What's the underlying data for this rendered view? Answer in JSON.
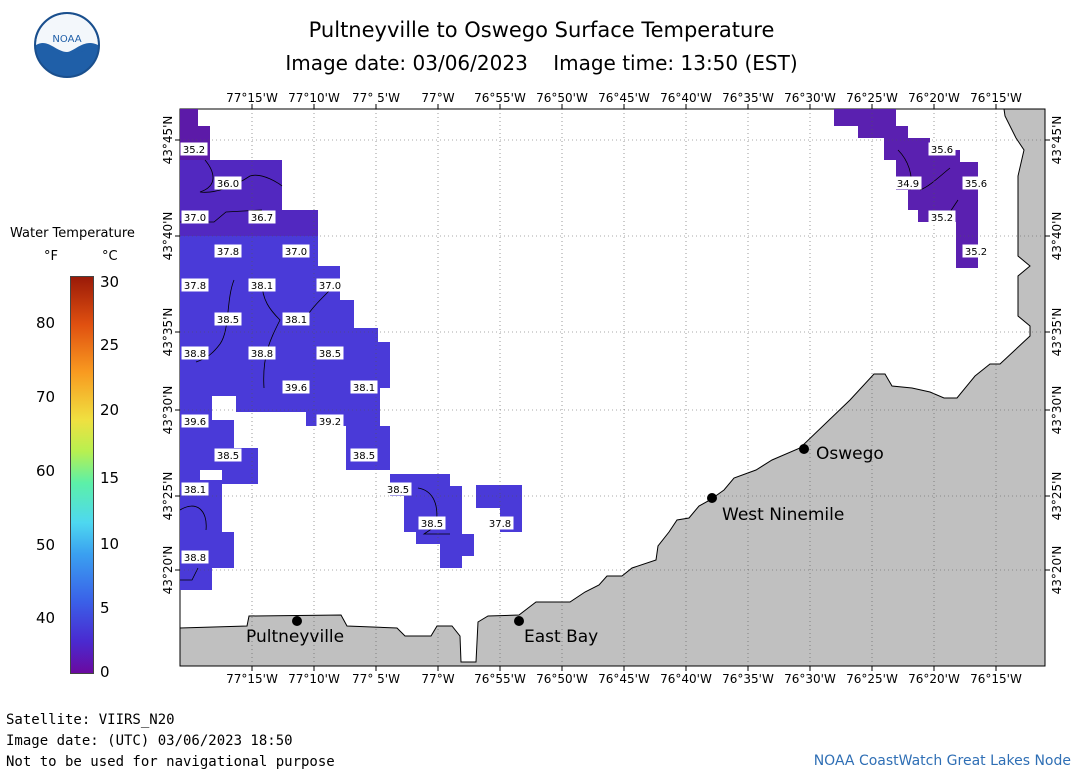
{
  "header": {
    "title": "Pultneyville to Oswego Surface Temperature",
    "subtitle": "Image date: 03/06/2023    Image time: 13:50 (EST)"
  },
  "logo": {
    "text": "NOAA",
    "icon": "noaa-logo-icon"
  },
  "legend": {
    "title": "Water Temperature",
    "unit_f": "°F",
    "unit_c": "°C",
    "f_ticks": [
      "40",
      "50",
      "60",
      "70",
      "80"
    ],
    "c_ticks": [
      "0",
      "5",
      "10",
      "15",
      "20",
      "25",
      "30"
    ]
  },
  "axes": {
    "lon_labels": [
      "77°15'W",
      "77°10'W",
      "77° 5'W",
      "77°W",
      "76°55'W",
      "76°50'W",
      "76°45'W",
      "76°40'W",
      "76°35'W",
      "76°30'W",
      "76°25'W",
      "76°20'W",
      "76°15'W"
    ],
    "lat_labels": [
      "43°45'N",
      "43°40'N",
      "43°35'N",
      "43°30'N",
      "43°25'N",
      "43°20'N"
    ]
  },
  "places": [
    {
      "name": "Oswego"
    },
    {
      "name": "West Ninemile"
    },
    {
      "name": "Pultneyville"
    },
    {
      "name": "East Bay"
    }
  ],
  "temperature_labels": [
    "35.2",
    "36.0",
    "37.0",
    "36.7",
    "37.8",
    "37.0",
    "37.8",
    "38.1",
    "37.0",
    "38.5",
    "38.1",
    "38.8",
    "38.8",
    "38.5",
    "39.6",
    "38.1",
    "39.6",
    "39.2",
    "38.5",
    "38.5",
    "38.1",
    "38.5",
    "38.8",
    "38.5",
    "37.8",
    "35.6",
    "34.9",
    "35.6",
    "35.2",
    "35.2"
  ],
  "footer": {
    "satellite": "Satellite: VIIRS_N20",
    "utc_date": "Image date: (UTC) 03/06/2023  18:50",
    "disclaimer": "Not to be used for navigational purpose",
    "credit": "NOAA CoastWatch Great Lakes Node"
  },
  "colors": {
    "land": "#c0c0c0",
    "water_cold": "#5a18b0",
    "water_mid": "#4b38d8",
    "water_warm": "#3a56e6"
  }
}
